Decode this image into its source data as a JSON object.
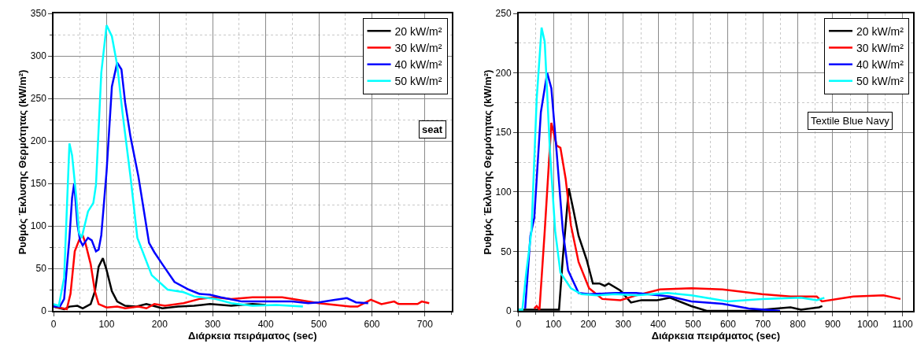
{
  "chart_data": [
    {
      "type": "line",
      "xlabel": "Διάρκεια πειράματος (sec)",
      "ylabel": "Ρυθμός Έκλυσης Θερμότητας (kW/m²)",
      "xlim": [
        0,
        750
      ],
      "xticks": [
        0,
        100,
        200,
        300,
        400,
        500,
        600,
        700
      ],
      "ylim": [
        0,
        350
      ],
      "yticks": [
        0,
        50,
        100,
        150,
        200,
        250,
        300,
        350
      ],
      "grid": true,
      "legend": "top right",
      "line_style": "solid",
      "annotations": [
        "seat"
      ],
      "series": [
        {
          "name": "20 kW/m²",
          "color": "#000000",
          "x": [
            0,
            20,
            30,
            45,
            55,
            70,
            78,
            85,
            93,
            100,
            110,
            120,
            135,
            155,
            175,
            205,
            235,
            265,
            295,
            335,
            375,
            400
          ],
          "values": [
            5,
            2,
            5,
            6,
            3,
            8,
            23,
            52,
            62,
            48,
            23,
            11,
            6,
            5,
            8,
            3,
            5,
            6,
            8,
            6,
            8,
            7
          ]
        },
        {
          "name": "30 kW/m²",
          "color": "#ff0000",
          "x": [
            0,
            25,
            32,
            40,
            50,
            55,
            60,
            70,
            78,
            85,
            100,
            120,
            135,
            160,
            175,
            190,
            210,
            245,
            275,
            305,
            335,
            375,
            431,
            500,
            559,
            573,
            598,
            618,
            642,
            650,
            686,
            694,
            708
          ],
          "values": [
            5,
            2,
            20,
            70,
            86,
            89,
            80,
            55,
            23,
            8,
            4,
            5,
            3,
            5,
            3,
            8,
            6,
            9,
            14,
            16,
            14,
            16,
            16,
            9,
            5,
            5,
            13,
            8,
            11,
            8,
            8,
            11,
            9
          ]
        },
        {
          "name": "40 kW/m²",
          "color": "#0000ff",
          "x": [
            0,
            12,
            20,
            30,
            35,
            39,
            45,
            50,
            55,
            65,
            72,
            80,
            85,
            90,
            100,
            110,
            120,
            128,
            135,
            145,
            160,
            180,
            190,
            205,
            228,
            255,
            275,
            295,
            315,
            355,
            380,
            450,
            480,
            500,
            530,
            553,
            570,
            593
          ],
          "values": [
            5,
            5,
            14,
            86,
            133,
            150,
            102,
            83,
            77,
            86,
            83,
            70,
            72,
            89,
            164,
            264,
            292,
            284,
            245,
            205,
            158,
            80,
            69,
            55,
            34,
            25,
            20,
            19,
            16,
            11,
            11,
            11,
            9,
            10,
            13,
            15,
            10,
            9
          ]
        },
        {
          "name": "50 kW/m²",
          "color": "#00ffff",
          "x": [
            0,
            10,
            20,
            30,
            35,
            43,
            48,
            53,
            65,
            75,
            80,
            90,
            100,
            110,
            120,
            130,
            145,
            158,
            185,
            215,
            245,
            265,
            305,
            335,
            375,
            420,
            470
          ],
          "values": [
            8,
            6,
            39,
            197,
            183,
            133,
            92,
            86,
            117,
            127,
            148,
            280,
            336,
            323,
            289,
            233,
            158,
            86,
            42,
            25,
            22,
            17,
            14,
            9,
            6,
            7,
            5
          ]
        }
      ]
    },
    {
      "type": "line",
      "xlabel": "Διάρκεια πειράματος (sec)",
      "ylabel": "Ρυθμός Έκλυσης Θερμότητας (kW/m²)",
      "xlim": [
        0,
        1130
      ],
      "xticks": [
        0,
        100,
        200,
        300,
        400,
        500,
        600,
        700,
        800,
        900,
        1000,
        1100
      ],
      "ylim": [
        0,
        250
      ],
      "yticks": [
        0,
        50,
        100,
        150,
        200,
        250
      ],
      "grid": true,
      "legend": "top right",
      "line_style": "solid",
      "annotations": [
        "Textile Blue Navy"
      ],
      "series": [
        {
          "name": "20 kW/m²",
          "color": "#000000",
          "x": [
            0,
            90,
            116,
            127,
            144,
            157,
            172,
            195,
            213,
            232,
            247,
            258,
            292,
            322,
            352,
            397,
            434,
            495,
            539,
            659,
            779,
            809,
            861,
            870
          ],
          "values": [
            1,
            1,
            1,
            45,
            103,
            85,
            63,
            43,
            23,
            23,
            21,
            23,
            17,
            7,
            9,
            9,
            11,
            4,
            0,
            0,
            3,
            1,
            3,
            4
          ]
        },
        {
          "name": "30 kW/m²",
          "color": "#ff0000",
          "x": [
            45,
            52,
            60,
            75,
            94,
            109,
            120,
            135,
            150,
            172,
            202,
            240,
            292,
            337,
            405,
            495,
            584,
            697,
            779,
            854,
            869,
            959,
            1045,
            1094
          ],
          "values": [
            2,
            4,
            1,
            67,
            158,
            139,
            137,
            111,
            72,
            41,
            19,
            10,
            9,
            13,
            18,
            19,
            18,
            14,
            12,
            12,
            8,
            12,
            13,
            10
          ]
        },
        {
          "name": "40 kW/m²",
          "color": "#0000ff",
          "x": [
            19,
            34,
            45,
            64,
            82,
            94,
            109,
            127,
            142,
            172,
            202,
            277,
            337,
            434,
            495,
            584,
            659,
            749
          ],
          "values": [
            2,
            63,
            78,
            167,
            200,
            187,
            134,
            67,
            34,
            15,
            14,
            15,
            15,
            12,
            8,
            6,
            2,
            0
          ]
        },
        {
          "name": "50 kW/m²",
          "color": "#00ffff",
          "x": [
            0,
            11,
            22,
            37,
            52,
            66,
            75,
            90,
            105,
            120,
            150,
            180,
            225,
            277,
            337,
            427,
            495,
            600,
            697,
            809,
            854,
            876
          ],
          "values": [
            1,
            1,
            32,
            67,
            178,
            238,
            226,
            134,
            67,
            32,
            19,
            14,
            13,
            14,
            13,
            15,
            13,
            8,
            10,
            11,
            9,
            11
          ]
        }
      ]
    }
  ]
}
